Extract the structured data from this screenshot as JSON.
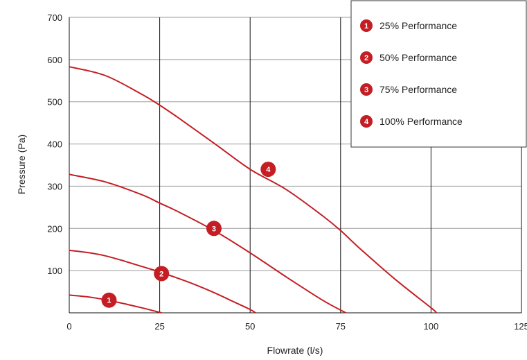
{
  "chart_data": {
    "type": "line",
    "xlabel": "Flowrate (l/s)",
    "ylabel": "Pressure (Pa)",
    "xlim": [
      0,
      125
    ],
    "ylim": [
      0,
      700
    ],
    "x_ticks": [
      "0",
      "25",
      "50",
      "75",
      "100",
      "125"
    ],
    "y_ticks": [
      "100",
      "200",
      "300",
      "400",
      "500",
      "600",
      "700"
    ],
    "grid": "vertical lines at 25, 50, 75, 100, 125; horizontal lines at 100-700",
    "legend_position": "top-right",
    "color": "#c41e24",
    "series": [
      {
        "name": "25% Performance",
        "marker": "1",
        "x": [
          0,
          5,
          10,
          15,
          20,
          25.5
        ],
        "y": [
          42,
          38,
          31,
          22,
          12,
          0
        ],
        "marker_at": [
          11,
          30
        ]
      },
      {
        "name": "50% Performance",
        "marker": "2",
        "x": [
          0,
          5,
          10,
          15,
          20,
          25,
          30,
          35,
          40,
          45,
          50,
          51.5
        ],
        "y": [
          148,
          143,
          135,
          123,
          110,
          97,
          82,
          66,
          48,
          28,
          8,
          0
        ],
        "marker_at": [
          25.5,
          93
        ]
      },
      {
        "name": "75% Performance",
        "marker": "3",
        "x": [
          0,
          10,
          20,
          25,
          30,
          40,
          50,
          60,
          70,
          76.5
        ],
        "y": [
          328,
          310,
          280,
          260,
          240,
          195,
          142,
          85,
          30,
          0
        ],
        "marker_at": [
          40,
          200
        ]
      },
      {
        "name": "100% Performance",
        "marker": "4",
        "x": [
          0,
          10,
          20,
          25,
          30,
          40,
          50,
          60,
          70,
          75,
          80,
          90,
          100,
          101.5
        ],
        "y": [
          583,
          562,
          518,
          492,
          463,
          402,
          340,
          292,
          230,
          195,
          155,
          80,
          12,
          0
        ],
        "marker_at": [
          55,
          340
        ]
      }
    ]
  }
}
